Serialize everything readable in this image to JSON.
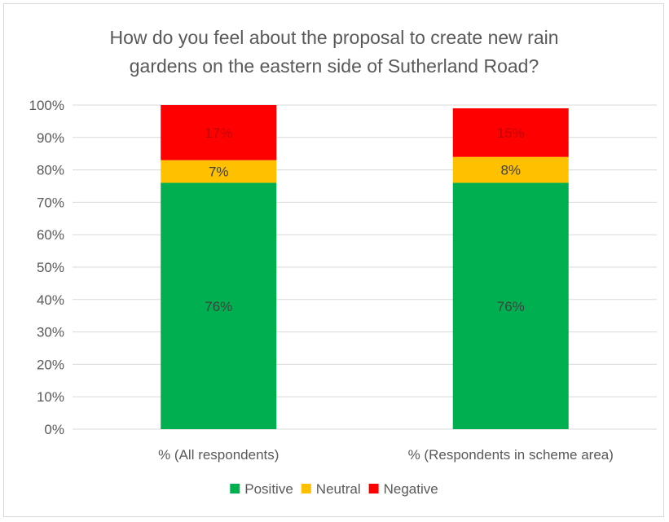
{
  "chart_data": {
    "type": "bar",
    "stacked": true,
    "title_lines": [
      "How do you feel about the proposal to create new rain",
      "gardens on the eastern side of Sutherland Road?"
    ],
    "categories": [
      "% (All respondents)",
      "% (Respondents in scheme area)"
    ],
    "series": [
      {
        "name": "Positive",
        "color": "#00b050",
        "label_color": "#404040",
        "values": [
          0.76,
          0.76
        ],
        "labels": [
          "76%",
          "76%"
        ]
      },
      {
        "name": "Neutral",
        "color": "#ffc000",
        "label_color": "#404040",
        "values": [
          0.07,
          0.08
        ],
        "labels": [
          "7%",
          "8%"
        ]
      },
      {
        "name": "Negative",
        "color": "#ff0000",
        "label_color": "#c00000",
        "values": [
          0.17,
          0.15
        ],
        "labels": [
          "17%",
          "15%"
        ]
      }
    ],
    "ylim": [
      0,
      1
    ],
    "yticks": [
      "0%",
      "10%",
      "20%",
      "30%",
      "40%",
      "50%",
      "60%",
      "70%",
      "80%",
      "90%",
      "100%"
    ],
    "grid": true,
    "legend_position": "bottom",
    "gridline_color": "#d9d9d9"
  }
}
